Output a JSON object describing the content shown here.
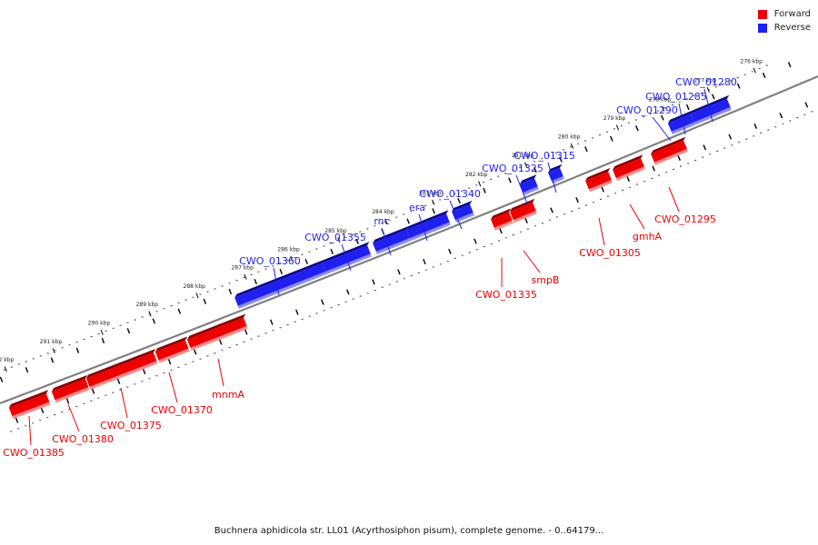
{
  "colors": {
    "forward": "#ee0000",
    "reverse": "#1f1ff0",
    "backbone": "#808080",
    "tick": "#000000"
  },
  "legend": {
    "items": [
      {
        "label": "Forward",
        "color": "#ee0000"
      },
      {
        "label": "Reverse",
        "color": "#1f1ff0"
      }
    ]
  },
  "caption": "Buchnera aphidicola str. LL01 (Acyrthosiphon pisum), complete genome. - 0..64179...",
  "tick_labels": [
    "276 kbp",
    "277 kbp",
    "278 kbp",
    "279 kbp",
    "280 kbp",
    "281 kbp",
    "282 kbp",
    "283 kbp",
    "284 kbp",
    "285 kbp",
    "286 kbp",
    "287 kbp",
    "288 kbp",
    "289 kbp",
    "290 kbp",
    "291 kbp",
    "292 kbp"
  ],
  "reverse_genes": [
    "CWO_01280",
    "CWO_01285",
    "CWO_01290",
    "CWO_01315",
    "CWO_01325",
    "CWO_01340",
    "era",
    "rnc",
    "CWO_01355",
    "CWO_01360"
  ],
  "forward_genes": [
    "CWO_01295",
    "gmhA",
    "CWO_01305",
    "smpB",
    "CWO_01335",
    "mnmA",
    "CWO_01370",
    "CWO_01375",
    "CWO_01380",
    "CWO_01385"
  ]
}
